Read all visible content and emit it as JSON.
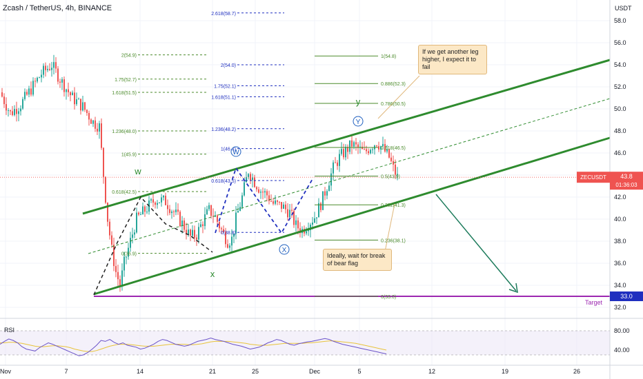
{
  "header": {
    "title": "Zcash / TetherUS, 4h, BINANCE"
  },
  "colors": {
    "up": "#26a69a",
    "down": "#ef5350",
    "channel": "#2e8b2e",
    "fib_green": "#4a8a2a",
    "fib_blue": "#1f2fbf",
    "target": "#9c27b0",
    "arrow": "#1b7a5a",
    "callout_bg": "#fce8c6",
    "symbol_box": "#ef5350",
    "target_box": "#1f2fbf",
    "rsi": "#6a52c8",
    "rsi_ma": "#e8c33a"
  },
  "axis": {
    "unit": "USDT"
  },
  "price_label": {
    "symbol": "ZECUSDT",
    "price": "43.8",
    "timer": "01:36:03"
  },
  "target_label": {
    "text": "Target",
    "value": "33.0"
  },
  "callouts": {
    "top": "If we get another leg higher, I expect it to fail",
    "bottom": "Ideally, wait for break of bear flag"
  },
  "wave_labels": [
    {
      "text": "w",
      "circled": false,
      "color": "#2e8b2e"
    },
    {
      "text": "x",
      "circled": false,
      "color": "#2e8b2e"
    },
    {
      "text": "y",
      "circled": false,
      "color": "#2e8b2e"
    },
    {
      "text": "W",
      "circled": true,
      "color": "#1f5fbf"
    },
    {
      "text": "X",
      "circled": true,
      "color": "#1f5fbf"
    },
    {
      "text": "Y",
      "circled": true,
      "color": "#1f5fbf"
    }
  ],
  "fib_left": [
    "2(54.9)",
    "1.75(52.7)",
    "1.618(51.5)",
    "1.236(48.0)",
    "1(45.9)",
    "0.618(42.5)",
    "0(36.9)"
  ],
  "fib_mid": [
    "2.618(58.7)",
    "2(54.0)",
    "1.75(52.1)",
    "1.618(51.1)",
    "1.236(48.2)",
    "1(46.4)",
    "0.618(43.5)",
    "0(38.8)"
  ],
  "fib_right": [
    "1(54.8)",
    "0.886(52.3)",
    "0.786(50.5)",
    "0.618(46.5)",
    "0.5(43.9)",
    "0.382(41.3)",
    "0.236(38.1)",
    "0(33.0)"
  ],
  "rsi": {
    "label": "RSI",
    "levels": [
      "80.00",
      "40.00"
    ],
    "values": [
      52,
      58,
      63,
      60,
      55,
      47,
      42,
      40,
      38,
      45,
      50,
      55,
      52,
      48,
      44,
      40,
      36,
      32,
      28,
      30,
      35,
      42,
      50,
      60,
      58,
      62,
      56,
      52,
      55,
      50,
      48,
      46,
      42,
      44,
      48,
      52,
      58,
      62,
      60,
      56,
      52,
      50,
      48,
      50,
      54,
      58,
      60,
      62,
      65,
      62,
      60,
      58,
      55,
      52,
      50,
      48,
      45,
      42,
      44,
      46,
      50,
      55,
      58,
      62,
      60,
      56,
      52,
      50,
      53,
      55,
      57,
      58,
      60,
      62,
      64,
      62,
      58,
      55,
      52,
      50,
      48,
      46,
      44,
      42,
      40,
      38,
      36,
      34,
      32
    ],
    "ma": [
      55,
      55,
      56,
      56,
      55,
      54,
      52,
      50,
      48,
      47,
      47,
      48,
      49,
      49,
      48,
      47,
      45,
      42,
      40,
      38,
      37,
      37,
      39,
      42,
      45,
      48,
      50,
      52,
      52,
      52,
      51,
      50,
      49,
      48,
      48,
      48,
      49,
      50,
      51,
      52,
      52,
      52,
      52,
      51,
      51,
      52,
      53,
      55,
      57,
      58,
      58,
      58,
      58,
      57,
      56,
      55,
      54,
      52,
      51,
      50,
      50,
      50,
      51,
      52,
      53,
      54,
      54,
      54,
      54,
      54,
      55,
      55,
      56,
      57,
      58,
      59,
      59,
      58,
      57,
      56,
      55,
      54,
      52,
      50,
      48,
      46,
      44,
      42,
      40
    ]
  },
  "chart_data": {
    "type": "candlestick",
    "symbol": "ZECUSDT",
    "exchange": "BINANCE",
    "timeframe": "4h",
    "y_unit": "USDT",
    "y_ticks": [
      32.0,
      34.0,
      36.0,
      38.0,
      40.0,
      42.0,
      44.0,
      46.0,
      48.0,
      50.0,
      52.0,
      54.0,
      56.0,
      58.0
    ],
    "x_ticks": [
      "Nov",
      "7",
      "14",
      "21",
      "25",
      "Dec",
      "5",
      "12",
      "19",
      "26"
    ],
    "last_price": 43.8,
    "target": 33.0,
    "close_path": [
      [
        0,
        51.5
      ],
      [
        5,
        49.6
      ],
      [
        10,
        50.4
      ],
      [
        15,
        51.8
      ],
      [
        20,
        53.2
      ],
      [
        25,
        54.0
      ],
      [
        30,
        52.4
      ],
      [
        35,
        51.0
      ],
      [
        40,
        50.2
      ],
      [
        45,
        48.8
      ],
      [
        48,
        48.4
      ],
      [
        50,
        44.0
      ],
      [
        52,
        40.0
      ],
      [
        54,
        37.2
      ],
      [
        56,
        35.2
      ],
      [
        58,
        34.0
      ],
      [
        60,
        36.0
      ],
      [
        63,
        38.0
      ],
      [
        66,
        40.0
      ],
      [
        70,
        40.8
      ],
      [
        75,
        41.8
      ],
      [
        80,
        41.6
      ],
      [
        85,
        40.4
      ],
      [
        88,
        39.6
      ],
      [
        92,
        38.4
      ],
      [
        95,
        38.6
      ],
      [
        98,
        39.8
      ],
      [
        101,
        40.8
      ],
      [
        104,
        40.2
      ],
      [
        107,
        39.0
      ],
      [
        110,
        38.0
      ],
      [
        112,
        38.2
      ],
      [
        114,
        40.0
      ],
      [
        117,
        42.0
      ],
      [
        120,
        44.4
      ],
      [
        123,
        43.4
      ],
      [
        126,
        42.6
      ],
      [
        129,
        42.2
      ],
      [
        132,
        41.4
      ],
      [
        136,
        41.2
      ],
      [
        140,
        40.6
      ],
      [
        143,
        39.4
      ],
      [
        146,
        39.0
      ],
      [
        149,
        39.6
      ],
      [
        152,
        40.2
      ],
      [
        155,
        41.4
      ],
      [
        158,
        43.0
      ],
      [
        161,
        44.6
      ],
      [
        164,
        45.6
      ],
      [
        167,
        46.2
      ],
      [
        170,
        46.8
      ],
      [
        173,
        46.4
      ],
      [
        176,
        46.0
      ],
      [
        179,
        46.6
      ],
      [
        182,
        47.0
      ],
      [
        185,
        46.4
      ],
      [
        188,
        45.6
      ],
      [
        190,
        44.6
      ],
      [
        192,
        43.8
      ]
    ]
  }
}
